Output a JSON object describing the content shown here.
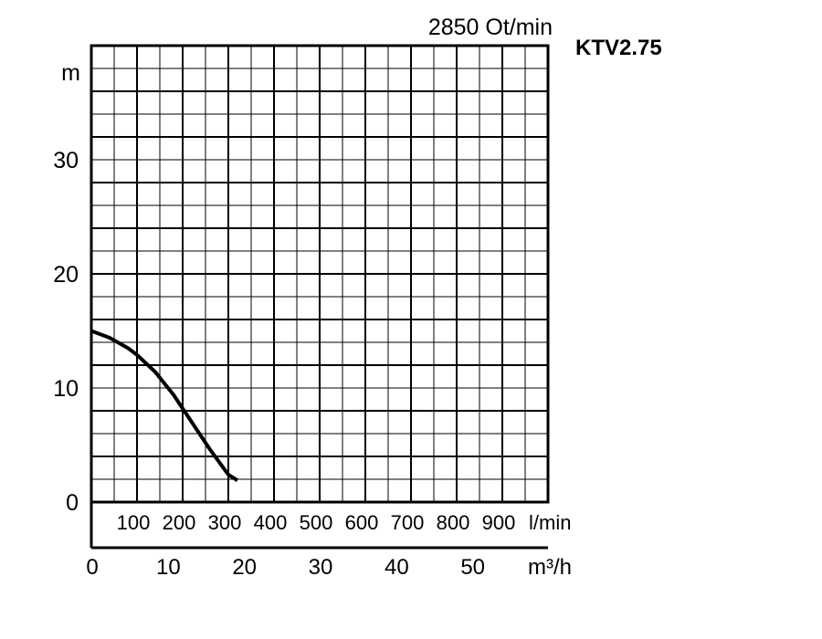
{
  "chart_data": {
    "type": "line",
    "title": "2850 Ot/min",
    "model": "KTV2.75",
    "ylabel": "m",
    "xlabel_lpm": "l/min",
    "xlabel_m3h": "m³/h",
    "ylim": [
      0,
      40
    ],
    "xlim_lpm": [
      0,
      1000
    ],
    "xlim_m3h": [
      0,
      60
    ],
    "grid": true,
    "y_ticks": [
      "0",
      "10",
      "20",
      "30"
    ],
    "y_tick_values": [
      0,
      10,
      20,
      30
    ],
    "lpm_ticks": [
      "100",
      "200",
      "300",
      "400",
      "500",
      "600",
      "700",
      "800",
      "900"
    ],
    "lpm_tick_values": [
      100,
      200,
      300,
      400,
      500,
      600,
      700,
      800,
      900
    ],
    "m3h_ticks": [
      "0",
      "10",
      "20",
      "30",
      "40",
      "50"
    ],
    "m3h_tick_values": [
      0,
      10,
      20,
      30,
      40,
      50
    ],
    "series": [
      {
        "color": "#000000",
        "x_lpm": [
          0,
          40,
          80,
          100,
          140,
          180,
          220,
          260,
          300,
          320
        ],
        "y_m": [
          15.0,
          14.4,
          13.5,
          12.9,
          11.4,
          9.4,
          7.0,
          4.6,
          2.4,
          1.9
        ]
      }
    ]
  }
}
